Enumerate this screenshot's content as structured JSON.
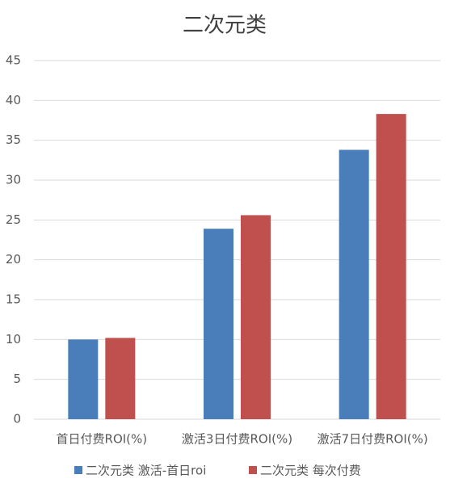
{
  "chart_data": {
    "type": "bar",
    "title": "二次元类",
    "categories": [
      "首日付费ROI(%)",
      "激活3日付费ROI(%)",
      "激活7日付费ROI(%)"
    ],
    "series": [
      {
        "name": "二次元类 激活-首日roi",
        "color": "#4a7ebb",
        "values": [
          10,
          23.9,
          33.8
        ]
      },
      {
        "name": "二次元类 每次付费",
        "color": "#c0504d",
        "values": [
          10.2,
          25.6,
          38.3
        ]
      }
    ],
    "ylim": [
      0,
      45
    ],
    "yticks": [
      0,
      5,
      10,
      15,
      20,
      25,
      30,
      35,
      40,
      45
    ],
    "grid": true,
    "legend": "bottom"
  }
}
